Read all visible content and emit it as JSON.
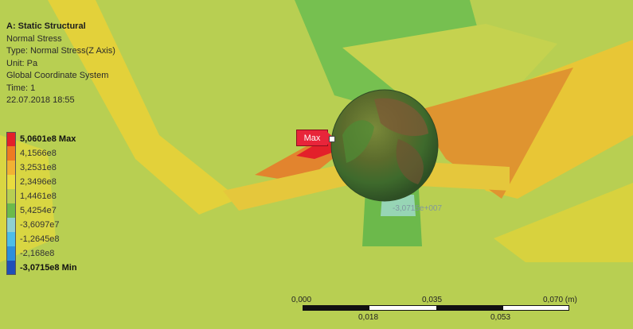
{
  "info": {
    "title": "A: Static Structural",
    "result_name": "Normal Stress",
    "type": "Type: Normal Stress(Z Axis)",
    "unit": "Unit: Pa",
    "coord": "Global Coordinate System",
    "time": "Time: 1",
    "date": "22.07.2018 18:55"
  },
  "legend": {
    "labels": [
      "5,0601e8 Max",
      "4,1566e8",
      "3,2531e8",
      "2,3496e8",
      "1,4461e8",
      "5,4254e7",
      "-3,6097e7",
      "-1,2645e8",
      "-2,168e8",
      "-3,0715e8 Min"
    ],
    "colors": [
      "#e3202a",
      "#ee7a22",
      "#f2b233",
      "#e9dc3e",
      "#b8cf52",
      "#6dba4a",
      "#8fd0cf",
      "#4dbde8",
      "#2d8fdc",
      "#1f4fb8"
    ]
  },
  "markers": {
    "max_label": "Max",
    "min_label": "-3,0715e+007"
  },
  "scale": {
    "top_labels": [
      "0,000",
      "0,035",
      "0,070 (m)"
    ],
    "bottom_labels": [
      "0,018",
      "0,053"
    ]
  }
}
